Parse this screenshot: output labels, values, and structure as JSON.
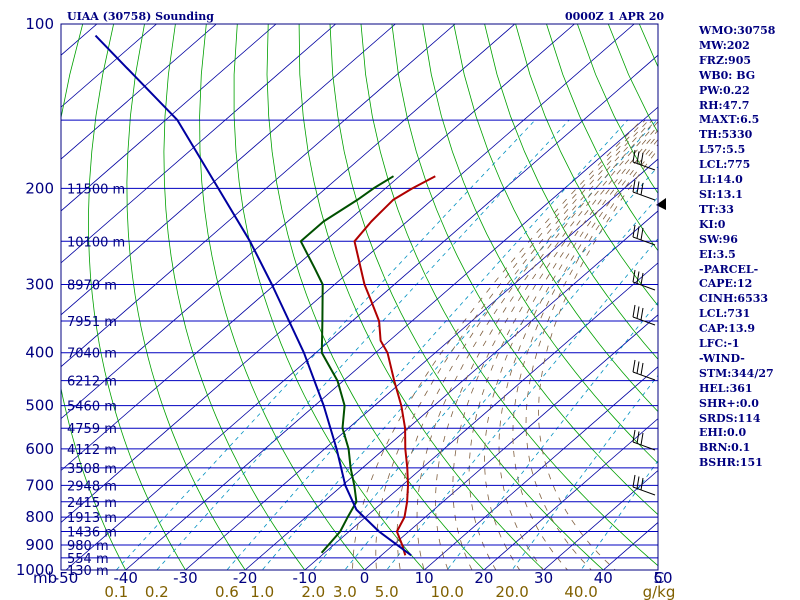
{
  "header": {
    "station_title": "UIAA (30758) Sounding",
    "valid_time": "0000Z  1 APR 20"
  },
  "colors": {
    "frame": "#000080",
    "temperature": "#b00000",
    "dewpoint": "#005000",
    "parcel": "#0000a0",
    "isotherm": "#0000a0",
    "dry_adiabat": "#00a000",
    "mixing_ratio": "#0090c0",
    "moist_adiabat": "#806040",
    "mixing_label": "#806000"
  },
  "chart_data": {
    "type": "skew-t log-p",
    "title": "UIAA (30758) Sounding",
    "pressure_unit": "mb",
    "temperature_unit": "C",
    "mixing_ratio_unit": "g/kg",
    "pressure_range": [
      1000,
      100
    ],
    "temperature_range_bottom": [
      -50,
      50
    ],
    "pressure_ticks": [
      100,
      200,
      300,
      400,
      500,
      600,
      700,
      800,
      900,
      1000
    ],
    "temperature_ticks": [
      "-50",
      "-40",
      "-30",
      "-20",
      "-10",
      "0",
      "10",
      "20",
      "30",
      "40",
      "50"
    ],
    "mixing_ratio_ticks": [
      "0.1",
      "0.2",
      "0.6",
      "1.0",
      "2.0",
      "3.0",
      "5.0",
      "10.0",
      "20.0",
      "40.0"
    ],
    "height_labels": [
      {
        "p": 200,
        "label": "11500 m"
      },
      {
        "p": 250,
        "label": "10100 m"
      },
      {
        "p": 300,
        "label": "8970 m"
      },
      {
        "p": 350,
        "label": "7951 m"
      },
      {
        "p": 400,
        "label": "7040 m"
      },
      {
        "p": 450,
        "label": "6212 m"
      },
      {
        "p": 500,
        "label": "5460 m"
      },
      {
        "p": 550,
        "label": "4759 m"
      },
      {
        "p": 600,
        "label": "4112 m"
      },
      {
        "p": 650,
        "label": "3508 m"
      },
      {
        "p": 700,
        "label": "2948 m"
      },
      {
        "p": 750,
        "label": "2415 m"
      },
      {
        "p": 800,
        "label": "1913 m"
      },
      {
        "p": 850,
        "label": "1436 m"
      },
      {
        "p": 900,
        "label": "980 m"
      },
      {
        "p": 950,
        "label": "554 m"
      },
      {
        "p": 1000,
        "label": "130 m"
      }
    ],
    "series": [
      {
        "name": "temperature",
        "points": [
          {
            "p": 940,
            "t": 4.0
          },
          {
            "p": 900,
            "t": 1.5
          },
          {
            "p": 850,
            "t": -2.0
          },
          {
            "p": 800,
            "t": -3.5
          },
          {
            "p": 750,
            "t": -6.0
          },
          {
            "p": 700,
            "t": -9.0
          },
          {
            "p": 650,
            "t": -12.5
          },
          {
            "p": 600,
            "t": -16.5
          },
          {
            "p": 550,
            "t": -20.5
          },
          {
            "p": 500,
            "t": -25.5
          },
          {
            "p": 450,
            "t": -31.5
          },
          {
            "p": 400,
            "t": -38.0
          },
          {
            "p": 380,
            "t": -41.5
          },
          {
            "p": 350,
            "t": -45.5
          },
          {
            "p": 320,
            "t": -51.0
          },
          {
            "p": 300,
            "t": -55.0
          },
          {
            "p": 250,
            "t": -65.0
          },
          {
            "p": 230,
            "t": -66.0
          },
          {
            "p": 210,
            "t": -66.5
          },
          {
            "p": 200,
            "t": -65.5
          },
          {
            "p": 190,
            "t": -64.0
          }
        ]
      },
      {
        "name": "dewpoint",
        "points": [
          {
            "p": 930,
            "t": -10.5
          },
          {
            "p": 850,
            "t": -11.5
          },
          {
            "p": 800,
            "t": -13.0
          },
          {
            "p": 750,
            "t": -14.5
          },
          {
            "p": 700,
            "t": -18.0
          },
          {
            "p": 650,
            "t": -22.0
          },
          {
            "p": 600,
            "t": -26.0
          },
          {
            "p": 550,
            "t": -31.0
          },
          {
            "p": 500,
            "t": -35.0
          },
          {
            "p": 450,
            "t": -41.0
          },
          {
            "p": 400,
            "t": -49.0
          },
          {
            "p": 350,
            "t": -55.0
          },
          {
            "p": 300,
            "t": -62.0
          },
          {
            "p": 280,
            "t": -66.5
          },
          {
            "p": 250,
            "t": -74.0
          },
          {
            "p": 230,
            "t": -74.0
          },
          {
            "p": 210,
            "t": -72.5
          },
          {
            "p": 200,
            "t": -72.0
          },
          {
            "p": 190,
            "t": -71.0
          }
        ]
      },
      {
        "name": "parcel",
        "points": [
          {
            "p": 940,
            "t": 5.0
          },
          {
            "p": 850,
            "t": -5.0
          },
          {
            "p": 775,
            "t": -13.0
          },
          {
            "p": 700,
            "t": -19.5
          },
          {
            "p": 600,
            "t": -28.0
          },
          {
            "p": 500,
            "t": -38.5
          },
          {
            "p": 400,
            "t": -52.0
          },
          {
            "p": 300,
            "t": -70.5
          },
          {
            "p": 250,
            "t": -82.5
          },
          {
            "p": 200,
            "t": -98.0
          },
          {
            "p": 150,
            "t": -118.0
          },
          {
            "p": 105,
            "t": -148.0
          }
        ]
      }
    ]
  },
  "stats": [
    "WMO:30758",
    "MW:202",
    "FRZ:905",
    "WB0: BG",
    "PW:0.22",
    "RH:47.7",
    "MAXT:6.5",
    "TH:5330",
    "L57:5.5",
    "LCL:775",
    "LI:14.0",
    "SI:13.1",
    "TT:33",
    "KI:0",
    "SW:96",
    "EI:3.5",
    "-PARCEL-",
    "CAPE:12",
    "CINH:6533",
    "LCL:731",
    "CAP:13.9",
    "LFC:-1",
    "-WIND-",
    "STM:344/27",
    "HEL:361",
    "SHR+:0.0",
    "SRDS:114",
    "EHI:0.0",
    "BRN:0.1",
    "BSHR:151"
  ]
}
